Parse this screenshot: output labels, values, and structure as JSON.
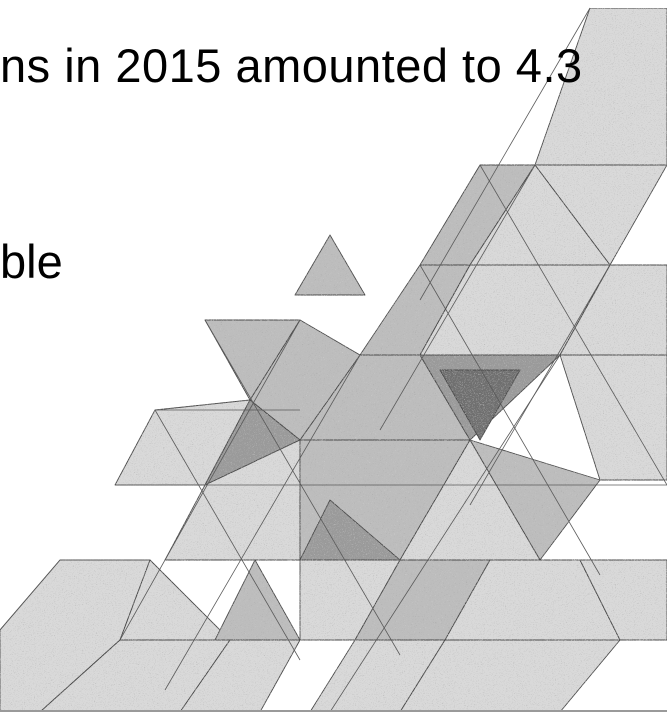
{
  "slide": {
    "line_1": "ns in 2015 amounted to 4.3",
    "line_2": "ble"
  },
  "decoration": {
    "name": "triangle-mosaic",
    "colors": {
      "light": "#d9d9d9",
      "mid": "#bdbdbd",
      "dark": "#9a9a9a",
      "darkest": "#6f6f6f",
      "stroke": "#4a4a4a"
    }
  }
}
